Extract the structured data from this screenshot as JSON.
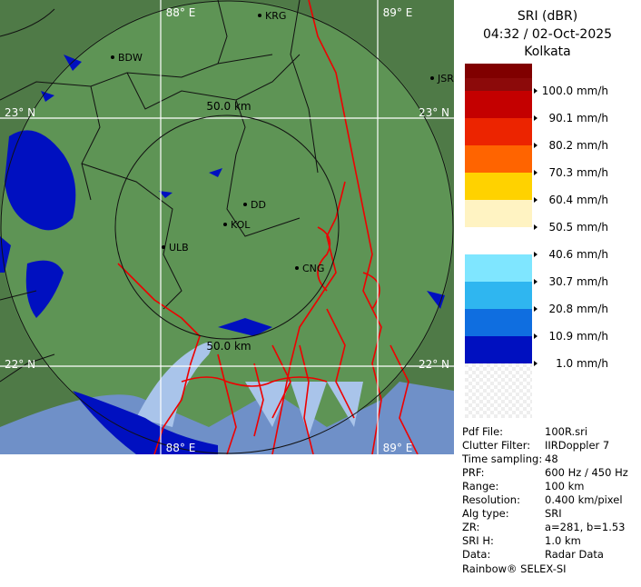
{
  "header": {
    "title": "SRI (dBR)",
    "time": "04:32 / 02-Oct-2025",
    "site": "Kolkata"
  },
  "legend": {
    "labels": [
      "100.0 mm/h",
      "90.1 mm/h",
      "80.2 mm/h",
      "70.3 mm/h",
      "60.4 mm/h",
      "50.5 mm/h",
      "40.6 mm/h",
      "30.7 mm/h",
      "20.8 mm/h",
      "10.9 mm/h",
      "1.0 mm/h"
    ],
    "colors": [
      "#800000",
      "#c40000",
      "#ec2400",
      "#ff6400",
      "#ffd200",
      "#fff3c2",
      "#ffffff",
      "#7fe6ff",
      "#2fb6f0",
      "#0f6ee0",
      "#0010c0"
    ]
  },
  "map": {
    "grid_labels": [
      "88° E",
      "89° E",
      "88° E",
      "89° E",
      "23° N",
      "23° N",
      "22° N",
      "22° N"
    ],
    "ring_labels": [
      "50.0 km",
      "50.0 km"
    ],
    "cities": [
      "KRG",
      "BDW",
      "JSR",
      "DD",
      "KOL",
      "ULB",
      "CNG"
    ]
  },
  "info": {
    "rows": [
      [
        "Pdf File:",
        "100R.sri"
      ],
      [
        "Clutter Filter:",
        "IIRDoppler 7"
      ],
      [
        "Time sampling:",
        "48"
      ],
      [
        "PRF:",
        "600 Hz / 450 Hz"
      ],
      [
        "Range:",
        "100 km"
      ],
      [
        "Resolution:",
        "0.400 km/pixel"
      ],
      [
        "Alg type:",
        "SRI"
      ],
      [
        "ZR:",
        "a=281, b=1.53"
      ],
      [
        "SRI H:",
        "1.0 km"
      ],
      [
        "Data:",
        "Radar Data"
      ]
    ],
    "footer": "Rainbow® SELEX-SI"
  }
}
